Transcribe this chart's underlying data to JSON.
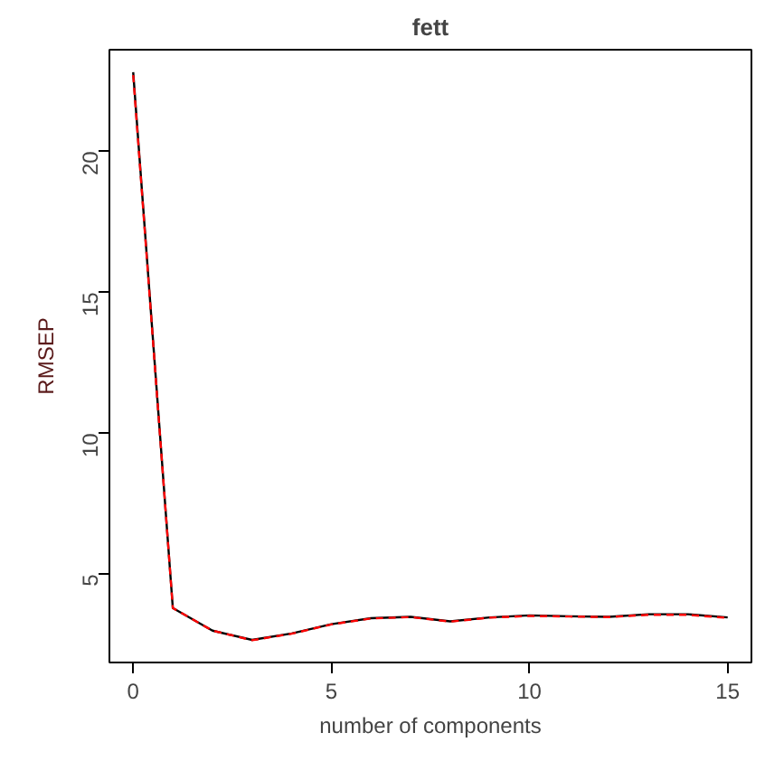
{
  "chart_data": {
    "type": "line",
    "title": "fett",
    "xlabel": "number of components",
    "ylabel": "RMSEP",
    "x": [
      0,
      1,
      2,
      3,
      4,
      5,
      6,
      7,
      8,
      9,
      10,
      11,
      12,
      13,
      14,
      15
    ],
    "series": [
      {
        "color": "#000000",
        "line_style": "solid",
        "values": [
          22.8,
          3.8,
          3.0,
          2.67,
          2.9,
          3.23,
          3.44,
          3.49,
          3.33,
          3.47,
          3.54,
          3.51,
          3.49,
          3.58,
          3.58,
          3.47
        ]
      },
      {
        "color": "#ff0000",
        "line_style": "dashed",
        "values": [
          22.7,
          3.8,
          3.0,
          2.66,
          2.89,
          3.22,
          3.43,
          3.48,
          3.32,
          3.46,
          3.52,
          3.5,
          3.48,
          3.56,
          3.56,
          3.45
        ]
      }
    ],
    "xlim": [
      -0.6,
      15.6
    ],
    "ylim": [
      1.87,
      23.6
    ],
    "xticks": [
      0,
      5,
      10,
      15
    ],
    "yticks": [
      5,
      10,
      15,
      20
    ]
  }
}
